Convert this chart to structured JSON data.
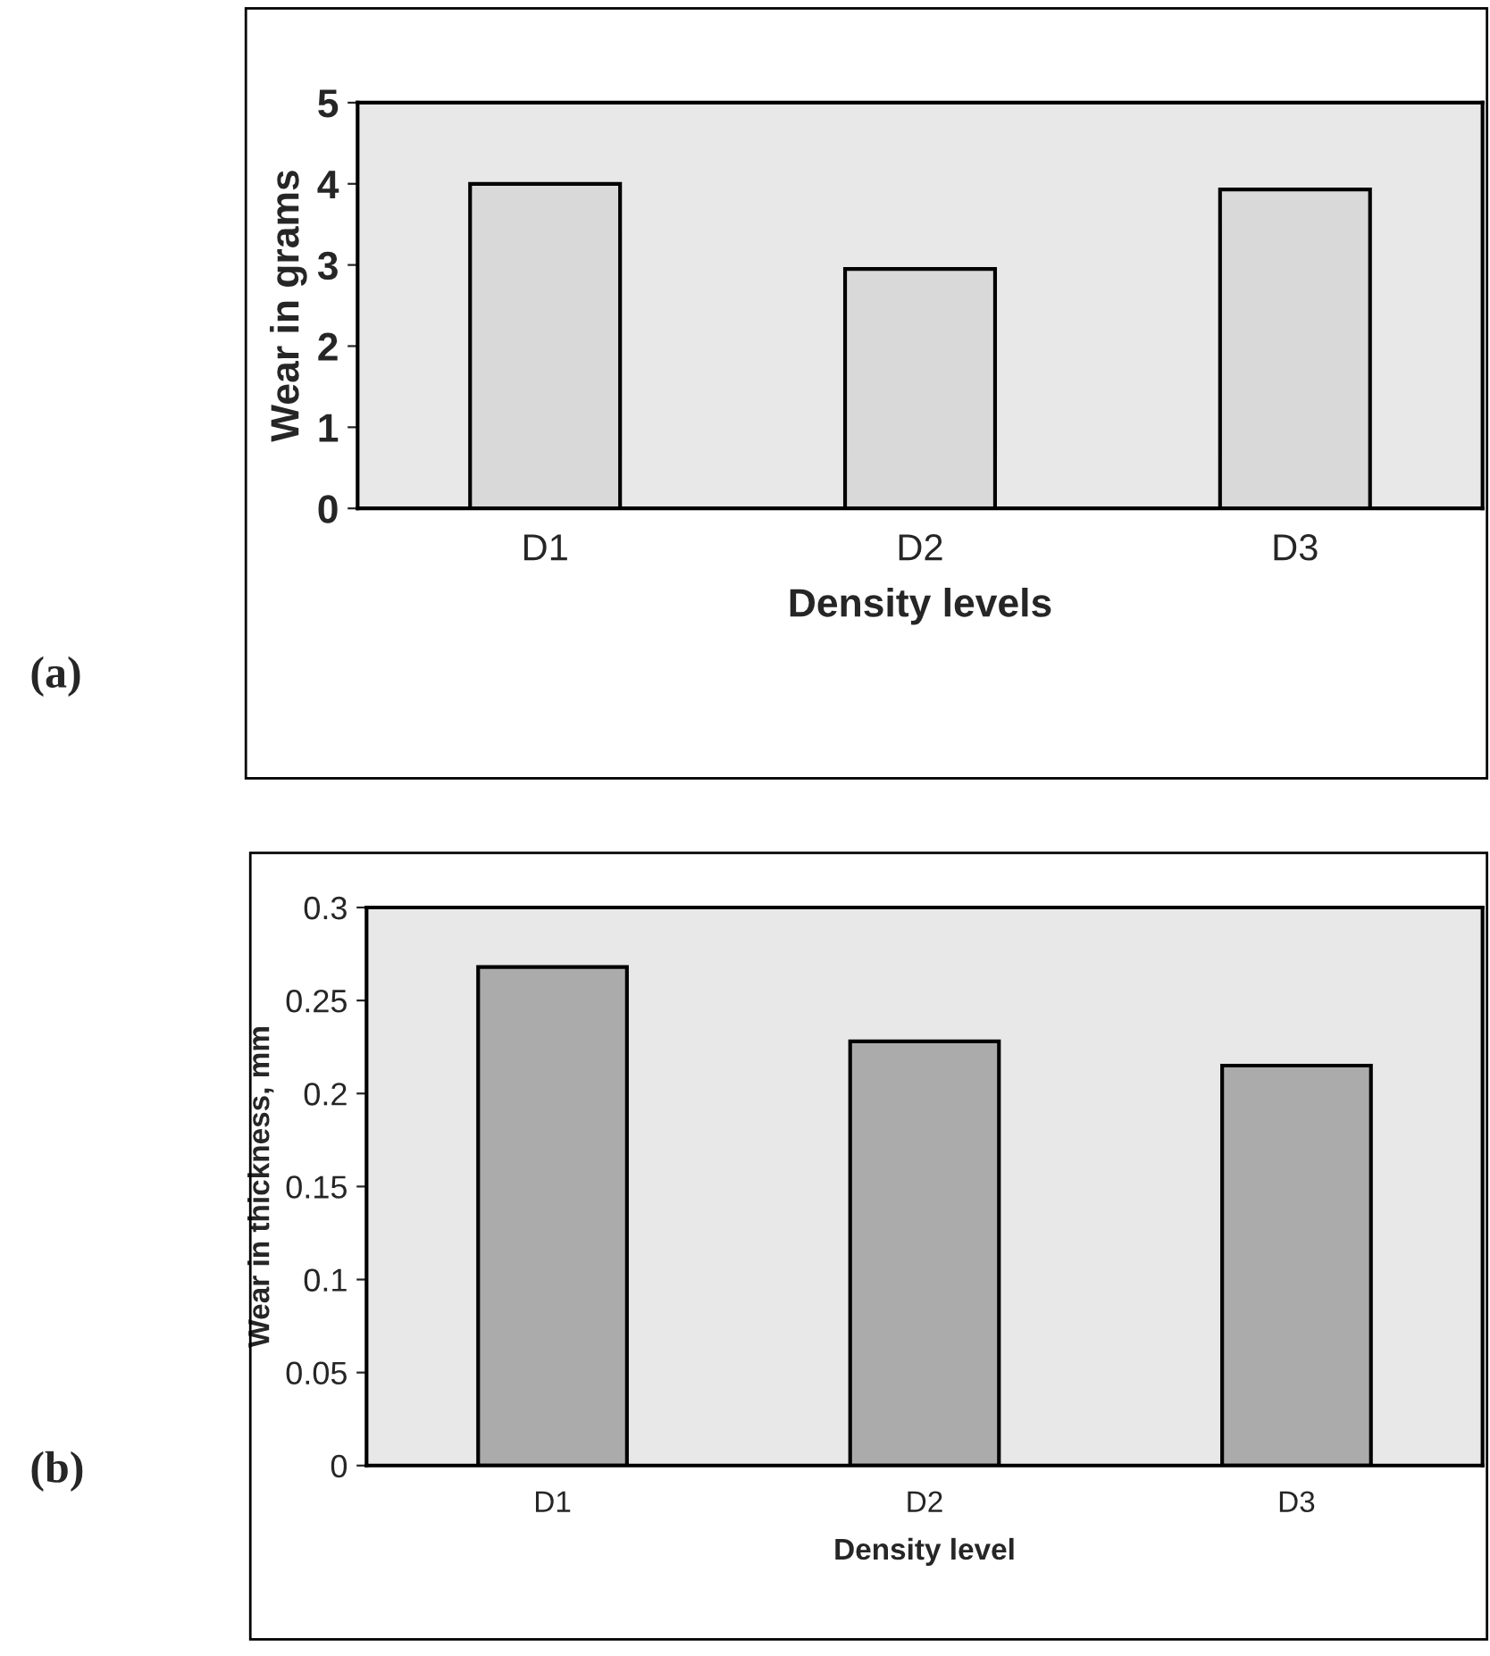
{
  "chart_data": [
    {
      "type": "bar",
      "xlabel": "Density levels",
      "ylabel": "Wear in grams",
      "categories": [
        "D1",
        "D2",
        "D3"
      ],
      "values": [
        4,
        2.95,
        3.93
      ],
      "color": "#d9d9d9",
      "ylim": [
        0,
        5
      ],
      "yticks": [
        0,
        1,
        2,
        3,
        4,
        5
      ],
      "grid": false,
      "annotations": [
        "(a)"
      ]
    },
    {
      "type": "bar",
      "xlabel": "Density level",
      "ylabel": "Wear in thickness, mm",
      "categories": [
        "D1",
        "D2",
        "D3"
      ],
      "values": [
        0.268,
        0.228,
        0.215
      ],
      "color": "#ababab",
      "ylim": [
        0,
        0.3
      ],
      "yticks": [
        0,
        0.05,
        0.1,
        0.15,
        0.2,
        0.25,
        0.3
      ],
      "grid": false,
      "annotations": [
        "(b)"
      ]
    }
  ]
}
